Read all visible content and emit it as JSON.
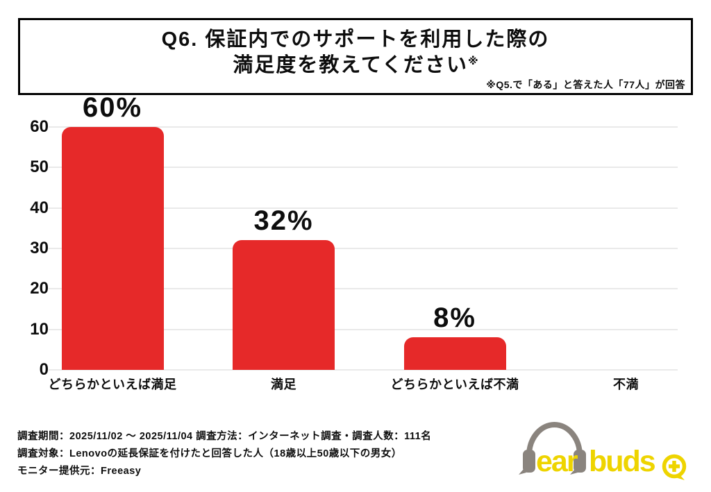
{
  "title": {
    "line1": "Q6. 保証内でのサポートを利用した際の",
    "line2": "満足度を教えてください",
    "superscript": "※",
    "note": "※Q5.で「ある」と答えた人「77人」が回答"
  },
  "chart_data": {
    "type": "bar",
    "title": "Q6. 保証内でのサポートを利用した際の満足度を教えてください※",
    "categories": [
      "どちらかといえば満足",
      "満足",
      "どちらかといえば不満",
      "不満"
    ],
    "values": [
      60,
      32,
      8,
      0
    ],
    "value_labels": [
      "60%",
      "32%",
      "8%",
      ""
    ],
    "unit": "%",
    "ylim": [
      0,
      60
    ],
    "yticks": [
      0,
      10,
      20,
      30,
      40,
      50,
      60
    ],
    "grid": true,
    "legend_position": "none",
    "xlabel": "",
    "ylabel": "",
    "bar_color_hex": "#e62929",
    "grid_color_hex": "#e9e9e9"
  },
  "footer": {
    "line1": "調査期間：2025/11/02 ～ 2025/11/04  調査方法：インターネット調査・調査人数：111名",
    "line2": "調査対象：Lenovoの延長保証を付けたと回答した人（18歳以上50歳以下の男女）",
    "line3": "モニター提供元：Freeasy"
  },
  "logo": {
    "word1": "ear",
    "word2": "buds",
    "plus_symbol": "+",
    "yellow_hex": "#eed400",
    "gray_hex": "#8a847e"
  }
}
